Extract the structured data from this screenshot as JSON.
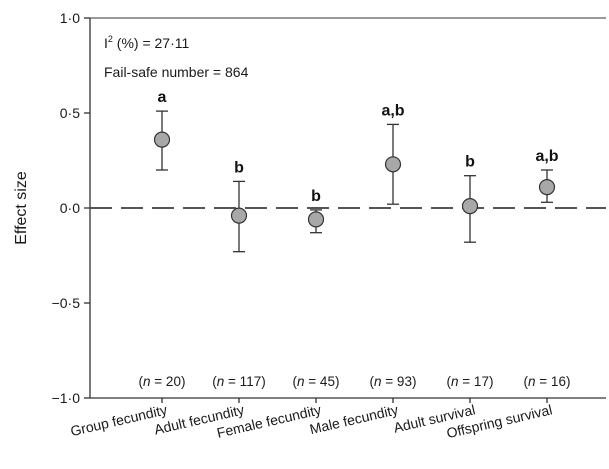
{
  "chart_data": {
    "type": "scatter",
    "style": "point estimates with error bars",
    "ylabel": "Effect size",
    "ylim": [
      -1.0,
      1.0
    ],
    "yticks": [
      {
        "value": 1.0,
        "label": "1·0"
      },
      {
        "value": 0.5,
        "label": "0·5"
      },
      {
        "value": 0.0,
        "label": "0·0"
      },
      {
        "value": -0.5,
        "label": "−0·5"
      },
      {
        "value": -1.0,
        "label": "−1·0"
      }
    ],
    "reference_line": {
      "y": 0,
      "style": "dashed"
    },
    "stats": {
      "i2_prefix": "I",
      "i2_sup": "2",
      "i2_rest": " (%) = 27·11",
      "failsafe": "Fail-safe number = 864"
    },
    "categories": [
      "Group fecundity",
      "Adult fecundity",
      "Female fecundity",
      "Male fecundity",
      "Adult survival",
      "Offspring survival"
    ],
    "values": [
      0.36,
      -0.04,
      -0.06,
      0.23,
      0.01,
      0.11
    ],
    "ci_low": [
      0.2,
      -0.23,
      -0.13,
      0.02,
      -0.18,
      0.03
    ],
    "ci_high": [
      0.51,
      0.14,
      -0.01,
      0.44,
      0.17,
      0.2
    ],
    "letters": [
      "a",
      "b",
      "b",
      "a,b",
      "b",
      "a,b"
    ],
    "n": [
      "20",
      "117",
      "45",
      "93",
      "17",
      "16"
    ],
    "grid": false,
    "colors": {
      "marker_fill": "#a8a8a8",
      "marker_stroke": "#333333",
      "line": "#333333"
    }
  }
}
